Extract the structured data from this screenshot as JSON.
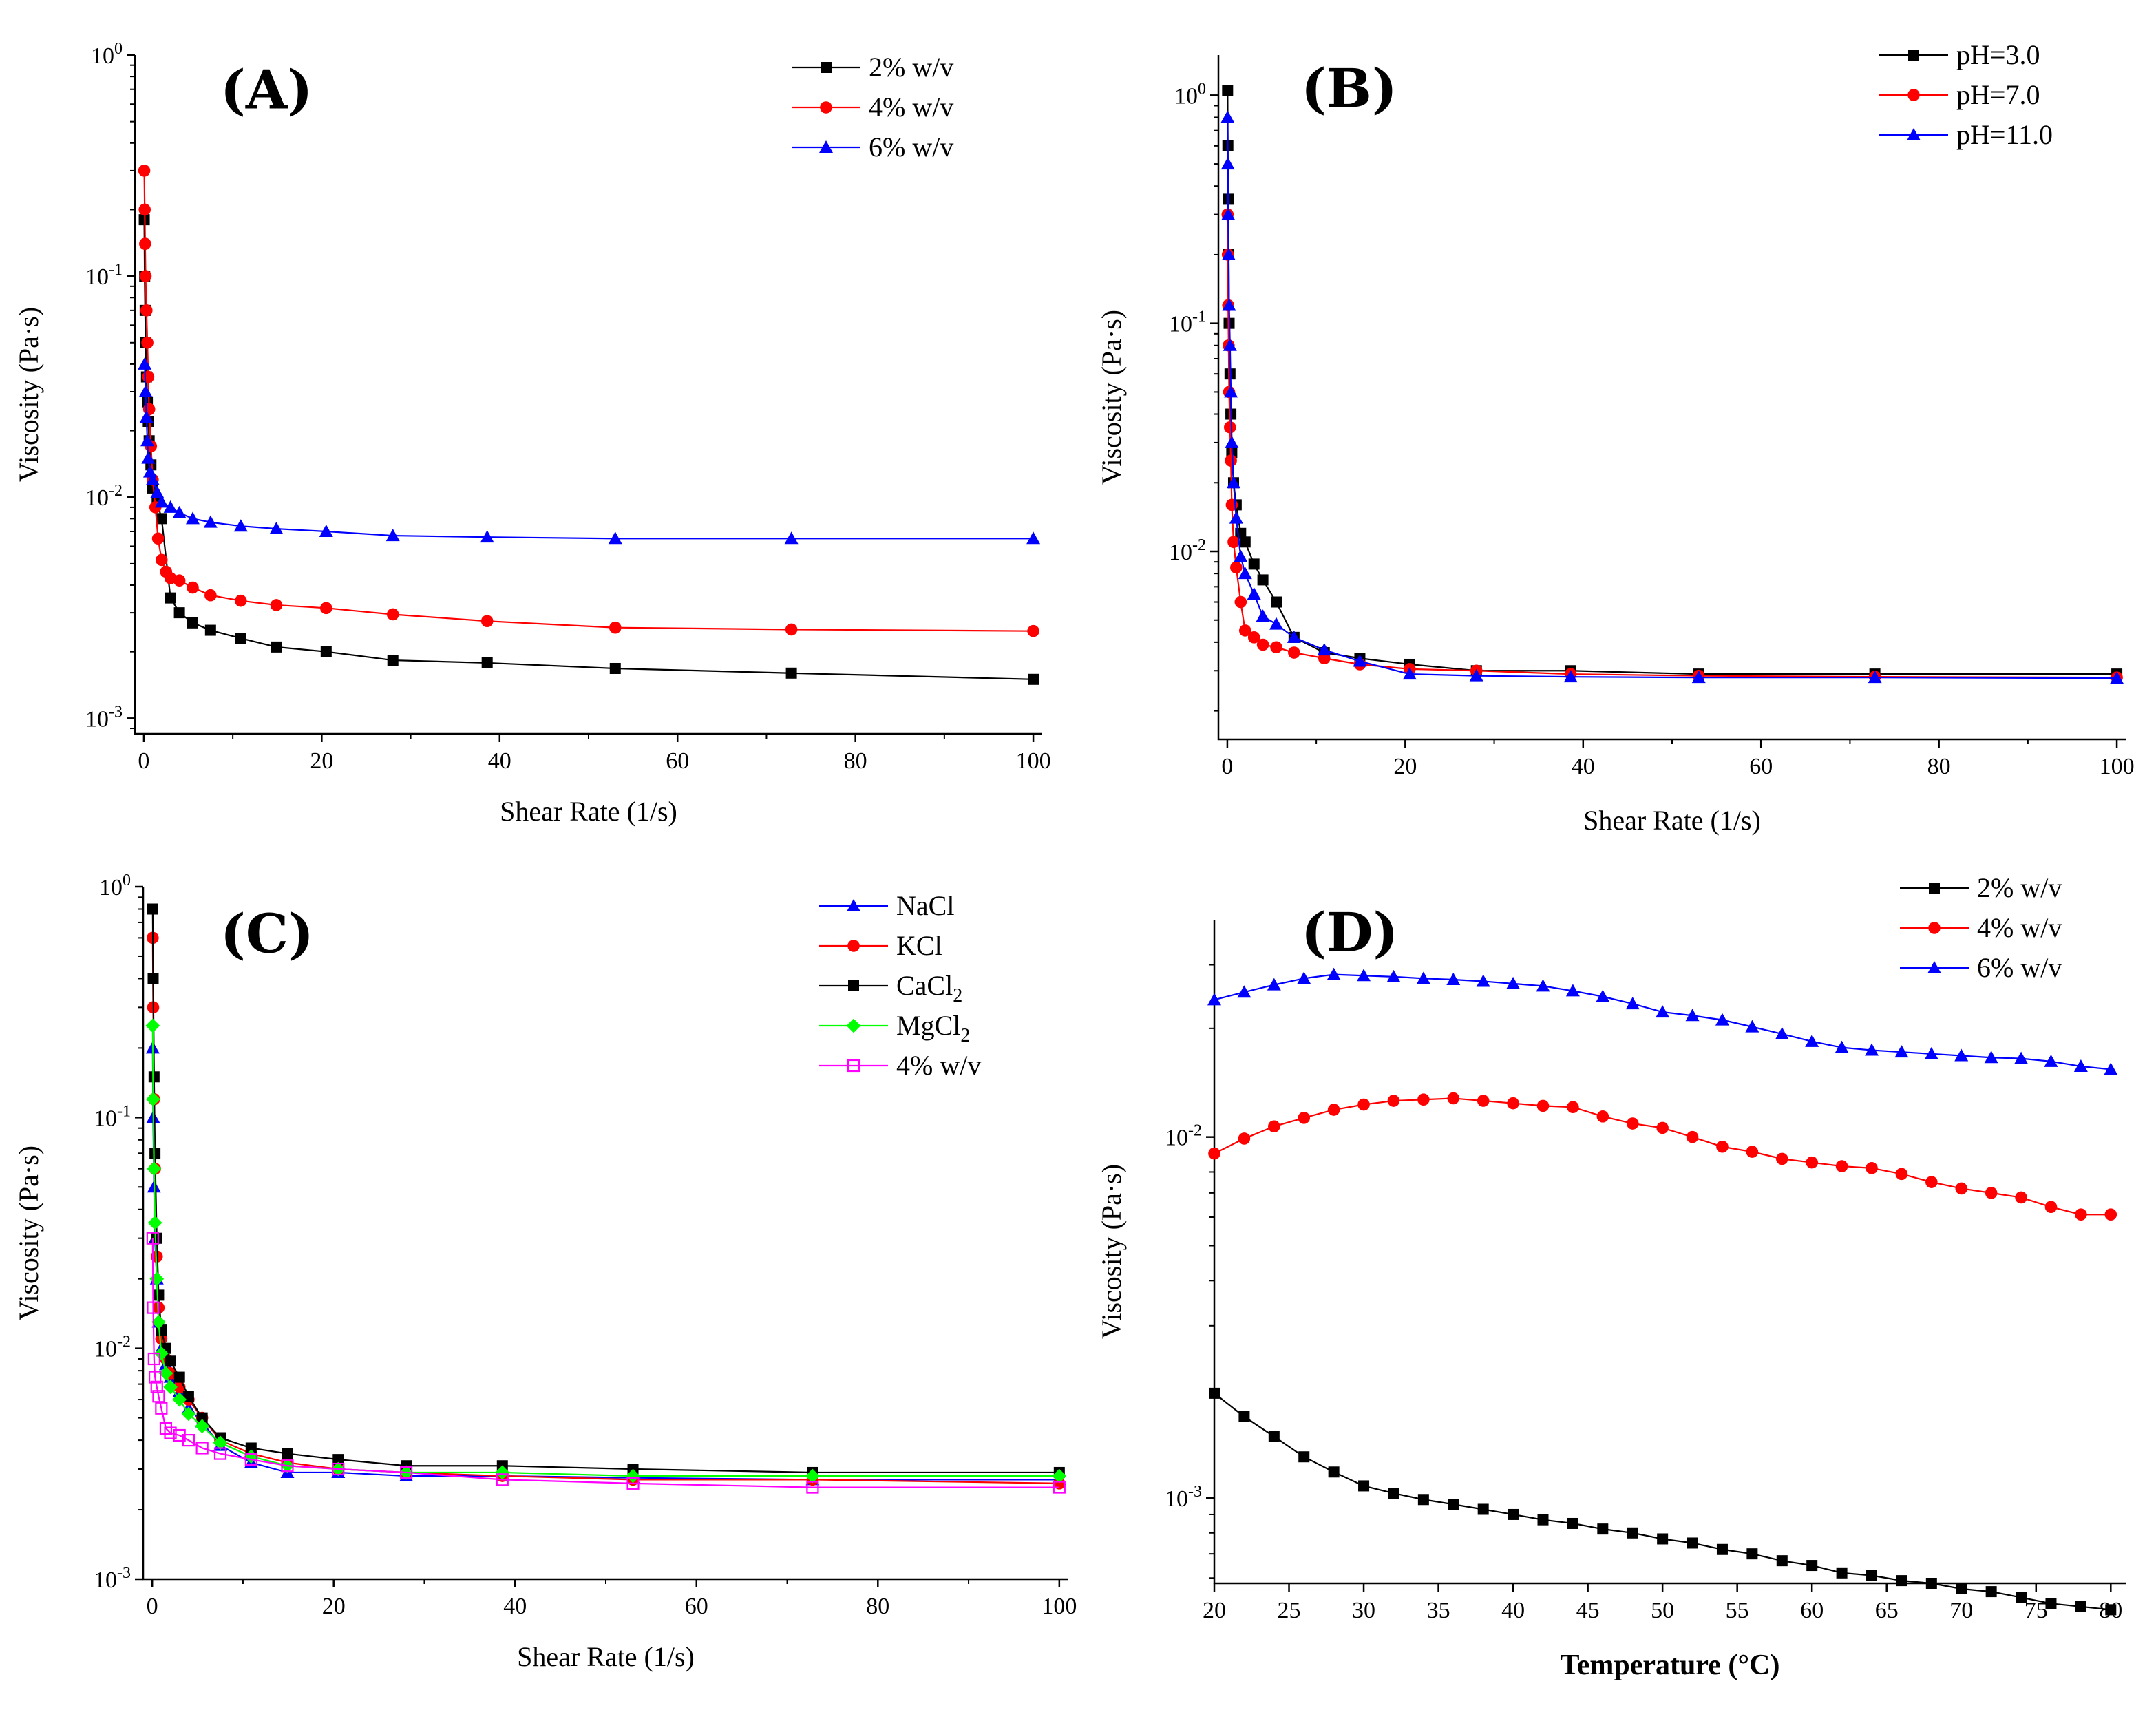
{
  "figure": {
    "description_title": ""
  },
  "chart_data": [
    {
      "id": "A",
      "type": "line",
      "title": "(A)",
      "xlabel": "Shear Rate (1/s)",
      "ylabel": "Viscosity (Pa·s)",
      "xscale": "linear",
      "yscale": "log",
      "xlim": [
        -1,
        101
      ],
      "ylim": [
        0.00085,
        1.0
      ],
      "xticks": [
        0,
        20,
        40,
        60,
        80,
        100
      ],
      "xtick_labels": [
        "0",
        "20",
        "40",
        "60",
        "80",
        "100"
      ],
      "yticks": [
        0.001,
        0.01,
        0.1,
        1
      ],
      "ytick_labels": [
        [
          "10",
          "-3"
        ],
        [
          "10",
          "-2"
        ],
        [
          "10",
          "-1"
        ],
        [
          "10",
          "0"
        ]
      ],
      "legend_position": "top-right",
      "series": [
        {
          "name": "2% w/v",
          "color": "#000000",
          "marker": "square",
          "x": [
            0.05,
            0.1,
            0.15,
            0.2,
            0.3,
            0.4,
            0.5,
            0.6,
            0.8,
            1.0,
            1.5,
            2.0,
            3.0,
            4.0,
            5.5,
            7.5,
            10.9,
            14.9,
            20.5,
            28.0,
            38.6,
            53.0,
            72.8,
            100
          ],
          "y": [
            0.18,
            0.1,
            0.07,
            0.05,
            0.035,
            0.027,
            0.022,
            0.018,
            0.014,
            0.011,
            0.0095,
            0.008,
            0.0035,
            0.003,
            0.0027,
            0.0025,
            0.0023,
            0.0021,
            0.002,
            0.00183,
            0.00178,
            0.00168,
            0.0016,
            0.0015
          ]
        },
        {
          "name": "4% w/v",
          "color": "#ff0000",
          "marker": "circle",
          "x": [
            0.05,
            0.1,
            0.15,
            0.2,
            0.3,
            0.4,
            0.5,
            0.6,
            0.8,
            1.0,
            1.3,
            1.6,
            2.0,
            2.5,
            3.0,
            4.0,
            5.5,
            7.5,
            10.9,
            14.9,
            20.5,
            28.0,
            38.6,
            53.0,
            72.8,
            100
          ],
          "y": [
            0.3,
            0.2,
            0.14,
            0.1,
            0.07,
            0.05,
            0.035,
            0.025,
            0.017,
            0.012,
            0.009,
            0.0065,
            0.0052,
            0.0046,
            0.0043,
            0.0042,
            0.0039,
            0.0036,
            0.0034,
            0.00325,
            0.00315,
            0.00295,
            0.00275,
            0.00257,
            0.00252,
            0.00248
          ]
        },
        {
          "name": "6% w/v",
          "color": "#0000ff",
          "marker": "triangle",
          "x": [
            0.1,
            0.2,
            0.3,
            0.4,
            0.5,
            0.7,
            1.0,
            1.5,
            2.0,
            3.0,
            4.0,
            5.5,
            7.5,
            10.9,
            14.9,
            20.5,
            28.0,
            38.6,
            53.0,
            72.8,
            100
          ],
          "y": [
            0.04,
            0.03,
            0.023,
            0.018,
            0.015,
            0.013,
            0.012,
            0.0105,
            0.0095,
            0.009,
            0.0085,
            0.008,
            0.0077,
            0.0074,
            0.0072,
            0.007,
            0.0067,
            0.0066,
            0.0065,
            0.0065,
            0.0065
          ]
        }
      ]
    },
    {
      "id": "B",
      "type": "line",
      "title": "(B)",
      "xlabel": "Shear Rate (1/s)",
      "ylabel": "Viscosity (Pa·s)",
      "xscale": "linear",
      "yscale": "log",
      "xlim": [
        -1,
        101
      ],
      "ylim": [
        0.0015,
        1.5
      ],
      "xticks": [
        0,
        20,
        40,
        60,
        80,
        100
      ],
      "xtick_labels": [
        "0",
        "20",
        "40",
        "60",
        "80",
        "100"
      ],
      "yticks": [
        0.01,
        0.1,
        1
      ],
      "ytick_labels": [
        [
          "10",
          "-2"
        ],
        [
          "10",
          "-1"
        ],
        [
          "10",
          "0"
        ]
      ],
      "legend_position": "top-right",
      "series": [
        {
          "name": "pH=3.0",
          "color": "#000000",
          "marker": "square",
          "x": [
            0.03,
            0.06,
            0.1,
            0.15,
            0.2,
            0.3,
            0.4,
            0.5,
            0.7,
            1.0,
            1.5,
            2.0,
            3.0,
            4.0,
            5.5,
            7.5,
            10.9,
            14.9,
            20.5,
            28.0,
            38.6,
            53.0,
            72.8,
            100
          ],
          "y": [
            1.05,
            0.6,
            0.35,
            0.2,
            0.1,
            0.06,
            0.04,
            0.027,
            0.02,
            0.016,
            0.012,
            0.011,
            0.0088,
            0.0075,
            0.006,
            0.0042,
            0.0036,
            0.0034,
            0.0032,
            0.003,
            0.003,
            0.0029,
            0.0029,
            0.0029
          ]
        },
        {
          "name": "pH=7.0",
          "color": "#ff0000",
          "marker": "circle",
          "x": [
            0.03,
            0.06,
            0.1,
            0.15,
            0.2,
            0.3,
            0.4,
            0.5,
            0.7,
            1.0,
            1.5,
            2.0,
            3.0,
            4.0,
            5.5,
            7.5,
            10.9,
            14.9,
            20.5,
            28.0,
            38.6,
            53.0,
            72.8,
            100
          ],
          "y": [
            0.3,
            0.2,
            0.12,
            0.08,
            0.05,
            0.035,
            0.025,
            0.016,
            0.011,
            0.0085,
            0.006,
            0.0045,
            0.0042,
            0.0039,
            0.0038,
            0.0036,
            0.0034,
            0.0032,
            0.00305,
            0.003,
            0.0029,
            0.00285,
            0.00282,
            0.0028
          ]
        },
        {
          "name": "pH=11.0",
          "color": "#0000ff",
          "marker": "triangle",
          "x": [
            0.03,
            0.06,
            0.1,
            0.15,
            0.2,
            0.3,
            0.4,
            0.5,
            0.7,
            1.0,
            1.5,
            2.0,
            3.0,
            4.0,
            5.5,
            7.5,
            10.9,
            14.9,
            20.5,
            28.0,
            38.6,
            53.0,
            72.8,
            100
          ],
          "y": [
            0.8,
            0.5,
            0.3,
            0.2,
            0.12,
            0.08,
            0.05,
            0.03,
            0.02,
            0.014,
            0.0095,
            0.008,
            0.0065,
            0.0052,
            0.0048,
            0.0042,
            0.0037,
            0.0033,
            0.0029,
            0.00285,
            0.00282,
            0.0028,
            0.0028,
            0.00278
          ]
        }
      ]
    },
    {
      "id": "C",
      "type": "line",
      "title": "(C)",
      "xlabel": "Shear Rate (1/s)",
      "ylabel": "Viscosity (Pa·s)",
      "xscale": "linear",
      "yscale": "log",
      "xlim": [
        -1,
        101
      ],
      "ylim": [
        0.001,
        1.0
      ],
      "xticks": [
        0,
        20,
        40,
        60,
        80,
        100
      ],
      "xtick_labels": [
        "0",
        "20",
        "40",
        "60",
        "80",
        "100"
      ],
      "yticks": [
        0.001,
        0.01,
        0.1,
        1
      ],
      "ytick_labels": [
        [
          "10",
          "-3"
        ],
        [
          "10",
          "-2"
        ],
        [
          "10",
          "-1"
        ],
        [
          "10",
          "0"
        ]
      ],
      "legend_position": "top-right",
      "series": [
        {
          "name": "NaCl",
          "color": "#0000ff",
          "marker": "triangle",
          "x": [
            0.05,
            0.1,
            0.2,
            0.3,
            0.5,
            0.7,
            1.0,
            1.5,
            2.0,
            3.0,
            4.0,
            5.5,
            7.5,
            10.9,
            14.9,
            20.5,
            28.0,
            38.6,
            53.0,
            72.8,
            100
          ],
          "y": [
            0.2,
            0.1,
            0.05,
            0.03,
            0.02,
            0.013,
            0.01,
            0.0085,
            0.0075,
            0.0065,
            0.0055,
            0.0048,
            0.0038,
            0.0032,
            0.0029,
            0.0029,
            0.0028,
            0.0028,
            0.00275,
            0.0027,
            0.0027
          ]
        },
        {
          "name": "KCl",
          "color": "#ff0000",
          "marker": "circle",
          "x": [
            0.05,
            0.1,
            0.2,
            0.3,
            0.5,
            0.7,
            1.0,
            1.5,
            2.0,
            3.0,
            4.0,
            5.5,
            7.5,
            10.9,
            14.9,
            20.5,
            28.0,
            38.6,
            53.0,
            72.8,
            100
          ],
          "y": [
            0.6,
            0.3,
            0.12,
            0.06,
            0.025,
            0.015,
            0.011,
            0.009,
            0.0078,
            0.0068,
            0.006,
            0.005,
            0.004,
            0.0035,
            0.0032,
            0.003,
            0.0029,
            0.0028,
            0.0027,
            0.0027,
            0.0026
          ]
        },
        {
          "name": "CaCl2",
          "color": "#000000",
          "marker": "square",
          "x": [
            0.05,
            0.1,
            0.2,
            0.3,
            0.5,
            0.7,
            1.0,
            1.5,
            2.0,
            3.0,
            4.0,
            5.5,
            7.5,
            10.9,
            14.9,
            20.5,
            28.0,
            38.6,
            53.0,
            72.8,
            100
          ],
          "y": [
            0.8,
            0.4,
            0.15,
            0.07,
            0.03,
            0.017,
            0.012,
            0.01,
            0.0088,
            0.0075,
            0.0062,
            0.005,
            0.0041,
            0.0037,
            0.0035,
            0.0033,
            0.0031,
            0.0031,
            0.003,
            0.0029,
            0.0029
          ]
        },
        {
          "name": "MgCl2",
          "color": "#00ff00",
          "marker": "diamond",
          "x": [
            0.05,
            0.1,
            0.2,
            0.3,
            0.5,
            0.7,
            1.0,
            1.5,
            2.0,
            3.0,
            4.0,
            5.5,
            7.5,
            10.9,
            14.9,
            20.5,
            28.0,
            38.6,
            53.0,
            72.8,
            100
          ],
          "y": [
            0.25,
            0.12,
            0.06,
            0.035,
            0.02,
            0.013,
            0.0095,
            0.0078,
            0.0068,
            0.006,
            0.0052,
            0.0046,
            0.0039,
            0.0034,
            0.0031,
            0.003,
            0.0029,
            0.0029,
            0.0028,
            0.0028,
            0.0028
          ]
        },
        {
          "name": "4% w/v",
          "color": "#ff00ff",
          "marker": "square-open",
          "x": [
            0.05,
            0.1,
            0.2,
            0.3,
            0.5,
            0.7,
            1.0,
            1.5,
            2.0,
            3.0,
            4.0,
            5.5,
            7.5,
            10.9,
            14.9,
            20.5,
            28.0,
            38.6,
            53.0,
            72.8,
            100
          ],
          "y": [
            0.03,
            0.015,
            0.009,
            0.0075,
            0.0068,
            0.0062,
            0.0055,
            0.0045,
            0.0043,
            0.0042,
            0.004,
            0.0037,
            0.0035,
            0.0033,
            0.0031,
            0.003,
            0.0029,
            0.0027,
            0.0026,
            0.0025,
            0.0025
          ]
        }
      ]
    },
    {
      "id": "D",
      "type": "line",
      "title": "(D)",
      "xlabel": "Temperature (°C)",
      "ylabel": "Viscosity (Pa·s)",
      "xscale": "linear",
      "yscale": "log",
      "xlim": [
        20,
        81
      ],
      "ylim": [
        0.00058,
        0.04
      ],
      "xticks": [
        20,
        25,
        30,
        35,
        40,
        45,
        50,
        55,
        60,
        65,
        70,
        75,
        80
      ],
      "xtick_labels": [
        "20",
        "25",
        "30",
        "35",
        "40",
        "45",
        "50",
        "55",
        "60",
        "65",
        "70",
        "75",
        "80"
      ],
      "yticks": [
        0.001,
        0.01
      ],
      "ytick_labels": [
        [
          "10",
          "-3"
        ],
        [
          "10",
          "-2"
        ]
      ],
      "legend_position": "top-right",
      "series": [
        {
          "name": "2% w/v",
          "color": "#000000",
          "marker": "square",
          "x": [
            20,
            22,
            24,
            26,
            28,
            30,
            32,
            34,
            36,
            38,
            40,
            42,
            44,
            46,
            48,
            50,
            52,
            54,
            56,
            58,
            60,
            62,
            64,
            66,
            68,
            70,
            72,
            74,
            76,
            78,
            80
          ],
          "y": [
            0.00195,
            0.00168,
            0.00148,
            0.0013,
            0.00118,
            0.00108,
            0.00103,
            0.00099,
            0.00096,
            0.00093,
            0.0009,
            0.00087,
            0.00085,
            0.00082,
            0.0008,
            0.00077,
            0.00075,
            0.00072,
            0.0007,
            0.00067,
            0.00065,
            0.00062,
            0.00061,
            0.00059,
            0.00058,
            0.00056,
            0.00055,
            0.00053,
            0.00051,
            0.0005,
            0.00049
          ]
        },
        {
          "name": "4% w/v",
          "color": "#ff0000",
          "marker": "circle",
          "x": [
            20,
            22,
            24,
            26,
            28,
            30,
            32,
            34,
            36,
            38,
            40,
            42,
            44,
            46,
            48,
            50,
            52,
            54,
            56,
            58,
            60,
            62,
            64,
            66,
            68,
            70,
            72,
            74,
            76,
            78,
            80
          ],
          "y": [
            0.009,
            0.0099,
            0.0107,
            0.0113,
            0.0119,
            0.0123,
            0.0126,
            0.0127,
            0.0128,
            0.0126,
            0.0124,
            0.0122,
            0.0121,
            0.0114,
            0.0109,
            0.0106,
            0.01,
            0.0094,
            0.0091,
            0.0087,
            0.0085,
            0.0083,
            0.0082,
            0.0079,
            0.0075,
            0.0072,
            0.007,
            0.0068,
            0.0064,
            0.0061,
            0.0061
          ]
        },
        {
          "name": "6% w/v",
          "color": "#0000ff",
          "marker": "triangle",
          "x": [
            20,
            22,
            24,
            26,
            28,
            30,
            32,
            34,
            36,
            38,
            40,
            42,
            44,
            46,
            48,
            50,
            52,
            54,
            56,
            58,
            60,
            62,
            64,
            66,
            68,
            70,
            72,
            74,
            76,
            78,
            80
          ],
          "y": [
            0.024,
            0.0252,
            0.0264,
            0.0275,
            0.0282,
            0.028,
            0.0278,
            0.0275,
            0.0273,
            0.027,
            0.0266,
            0.0262,
            0.0254,
            0.0245,
            0.0234,
            0.0222,
            0.0217,
            0.0211,
            0.0202,
            0.0193,
            0.0184,
            0.0177,
            0.0174,
            0.0172,
            0.017,
            0.0168,
            0.0166,
            0.0165,
            0.0162,
            0.0157,
            0.0154
          ]
        }
      ]
    }
  ]
}
